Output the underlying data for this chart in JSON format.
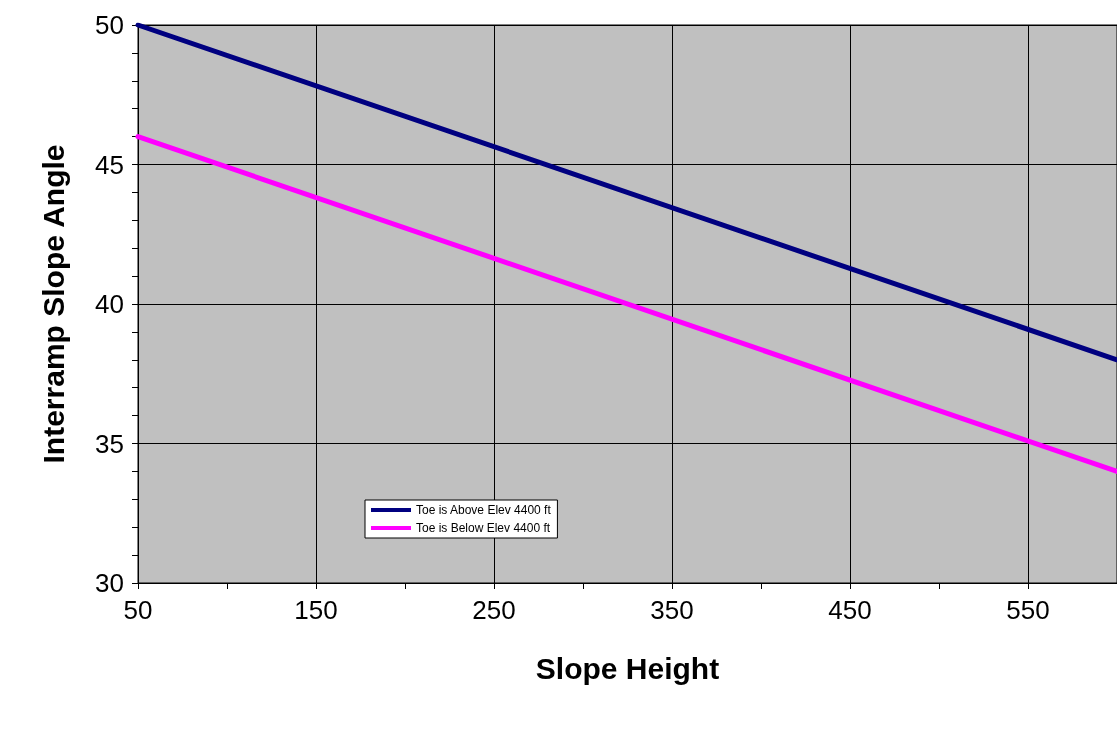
{
  "chart_data": {
    "type": "line",
    "xlabel": "Slope Height",
    "ylabel": "Interramp Slope Angle",
    "x": [
      50,
      600
    ],
    "series": [
      {
        "name": "Toe is Above Elev 4400 ft",
        "color": "#000080",
        "values": [
          50,
          38
        ]
      },
      {
        "name": "Toe is Below Elev 4400 ft",
        "color": "#ff00ff",
        "values": [
          46,
          34
        ]
      }
    ],
    "xlim": [
      50,
      600
    ],
    "xticks": [
      50,
      {
        "value": 100,
        "label": null
      },
      150,
      {
        "value": 200,
        "label": null
      },
      250,
      {
        "value": 300,
        "label": null
      },
      350,
      {
        "value": 400,
        "label": null
      },
      450,
      {
        "value": 500,
        "label": null
      },
      550
    ],
    "ylim": [
      30,
      50
    ],
    "yticks": [
      30,
      {
        "value": 31,
        "label": null
      },
      {
        "value": 32,
        "label": null
      },
      {
        "value": 33,
        "label": null
      },
      {
        "value": 34,
        "label": null
      },
      35,
      {
        "value": 36,
        "label": null
      },
      {
        "value": 37,
        "label": null
      },
      {
        "value": 38,
        "label": null
      },
      {
        "value": 39,
        "label": null
      },
      40,
      {
        "value": 41,
        "label": null
      },
      {
        "value": 42,
        "label": null
      },
      {
        "value": 43,
        "label": null
      },
      {
        "value": 44,
        "label": null
      },
      45,
      {
        "value": 46,
        "label": null
      },
      {
        "value": 47,
        "label": null
      },
      {
        "value": 48,
        "label": null
      },
      {
        "value": 49,
        "label": null
      },
      50
    ],
    "grid": true,
    "legend": "bottom left",
    "marker": "none",
    "line_style": "solid"
  }
}
